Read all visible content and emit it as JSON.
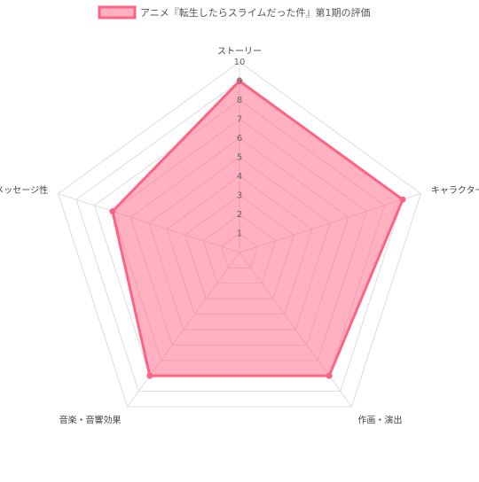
{
  "chart_data": {
    "type": "radar",
    "categories": [
      "ストーリー",
      "キャラクター",
      "作画・演出",
      "音楽・音響効果",
      "メッセージ性"
    ],
    "series": [
      {
        "name": "アニメ『転生したらスライムだった件』第1期の評価",
        "color": "#ff6384",
        "values": [
          9,
          9,
          8,
          8,
          7
        ]
      }
    ],
    "ylim": [
      0,
      10
    ],
    "yticks": [
      1,
      2,
      3,
      4,
      5,
      6,
      7,
      8,
      9,
      10
    ],
    "grid": true,
    "legend": "top"
  }
}
